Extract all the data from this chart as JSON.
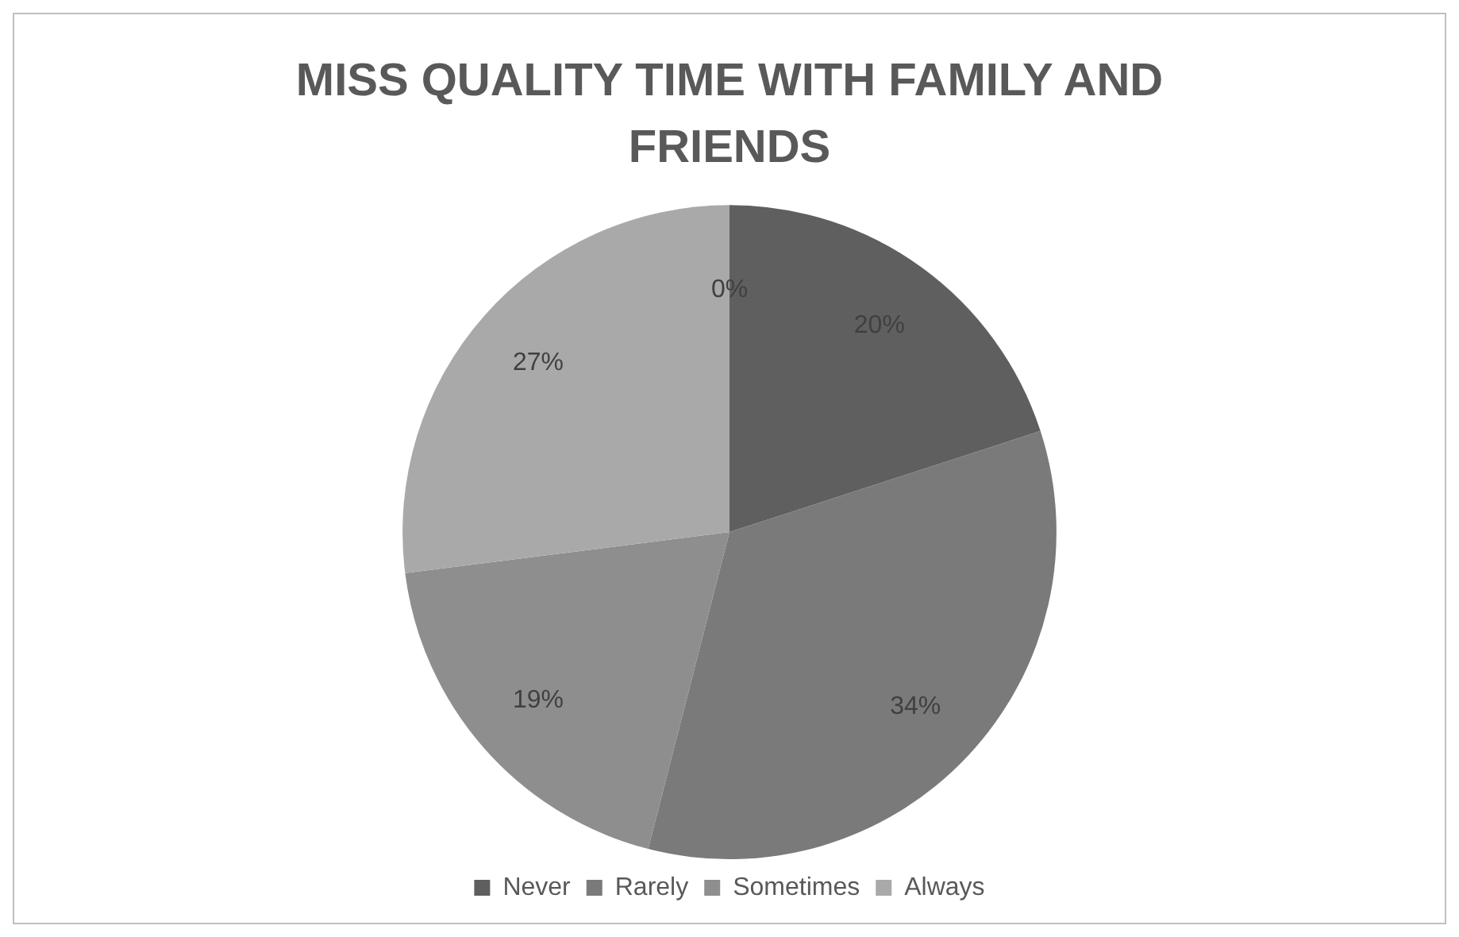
{
  "chart_data": {
    "type": "pie",
    "title": "MISS QUALITY TIME WITH FAMILY AND FRIENDS",
    "categories": [
      null,
      "Never",
      "Rarely",
      "Sometimes",
      "Always"
    ],
    "values": [
      0,
      20,
      34,
      19,
      27
    ],
    "colors": [
      "#505050",
      "#5f5f5f",
      "#7a7a7a",
      "#8e8e8e",
      "#a9a9a9"
    ],
    "value_labels": [
      "0%",
      "20%",
      "34%",
      "19%",
      "27%"
    ],
    "legend": "bottom"
  }
}
